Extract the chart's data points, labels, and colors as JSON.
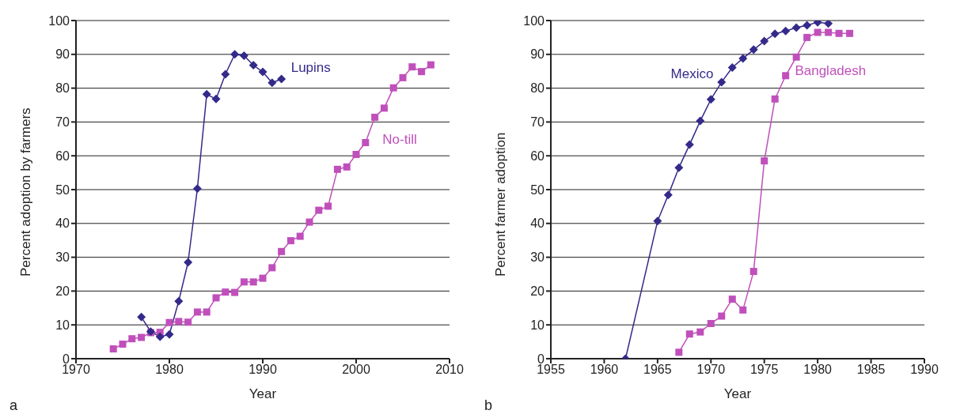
{
  "chart_data": [
    {
      "type": "line",
      "xlabel": "Year",
      "ylabel": "Percent adoption by farmers",
      "annotations": [
        "a"
      ],
      "xlim": [
        1970,
        2010
      ],
      "xticks": [
        1970,
        1980,
        1990,
        2000,
        2010
      ],
      "ylim": [
        0,
        100
      ],
      "yticks": [
        0,
        10,
        20,
        30,
        40,
        50,
        60,
        70,
        80,
        90,
        100
      ],
      "grid": "y",
      "legend": false,
      "series": [
        {
          "name": "Lupins",
          "color": "#342a8a",
          "marker": "diamond",
          "x": [
            1977,
            1978,
            1979,
            1980,
            1981,
            1982,
            1983,
            1984,
            1985,
            1986,
            1987,
            1988,
            1989,
            1990,
            1991,
            1992
          ],
          "values": [
            12.3,
            8,
            6.5,
            7.2,
            17,
            28.5,
            50.3,
            78.2,
            76.8,
            84.1,
            90,
            89.6,
            86.8,
            84.8,
            81.6,
            82.7
          ]
        },
        {
          "name": "No-till",
          "color": "#c04fbb",
          "marker": "square",
          "x": [
            1974,
            1975,
            1976,
            1977,
            1978,
            1979,
            1980,
            1981,
            1982,
            1983,
            1984,
            1985,
            1986,
            1987,
            1988,
            1989,
            1990,
            1991,
            1992,
            1993,
            1994,
            1995,
            1996,
            1997,
            1998,
            1999,
            2000,
            2001,
            2002,
            2003,
            2004,
            2005,
            2006,
            2007,
            2008
          ],
          "values": [
            2.9,
            4.3,
            5.9,
            6.3,
            7.7,
            7.8,
            10.7,
            11,
            10.8,
            13.8,
            13.8,
            18,
            19.7,
            19.6,
            22.7,
            22.7,
            23.8,
            26.9,
            31.7,
            34.9,
            36.2,
            40.4,
            43.9,
            45.1,
            56,
            56.7,
            60.4,
            63.9,
            71.4,
            74.1,
            80.1,
            83.1,
            86.3,
            84.9,
            86.9
          ]
        }
      ]
    },
    {
      "type": "line",
      "xlabel": "Year",
      "ylabel": "Percent farmer adoption",
      "annotations": [
        "b"
      ],
      "xlim": [
        1955,
        1990
      ],
      "xticks": [
        1955,
        1960,
        1965,
        1970,
        1975,
        1980,
        1985,
        1990
      ],
      "ylim": [
        0,
        100
      ],
      "yticks": [
        0,
        10,
        20,
        30,
        40,
        50,
        60,
        70,
        80,
        90,
        100
      ],
      "grid": "y",
      "legend": false,
      "series": [
        {
          "name": "Mexico",
          "color": "#342a8a",
          "marker": "diamond",
          "x": [
            1962,
            1965,
            1966,
            1967,
            1968,
            1969,
            1970,
            1971,
            1972,
            1973,
            1974,
            1975,
            1976,
            1977,
            1978,
            1979,
            1980,
            1981
          ],
          "values": [
            0,
            40.7,
            48.4,
            56.5,
            63.3,
            70.3,
            76.7,
            81.8,
            86.1,
            88.8,
            91.4,
            93.9,
            96.1,
            96.9,
            97.9,
            98.6,
            99.5,
            99.1
          ]
        },
        {
          "name": "Bangladesh",
          "color": "#c04fbb",
          "marker": "square",
          "x": [
            1967,
            1968,
            1969,
            1970,
            1971,
            1972,
            1973,
            1974,
            1975,
            1976,
            1977,
            1978,
            1979,
            1980,
            1981,
            1982,
            1983
          ],
          "values": [
            1.9,
            7.3,
            7.9,
            10.4,
            12.6,
            17.6,
            14.4,
            25.8,
            58.5,
            76.8,
            83.7,
            89.2,
            95,
            96.5,
            96.5,
            96.2,
            96.2
          ]
        }
      ]
    }
  ]
}
